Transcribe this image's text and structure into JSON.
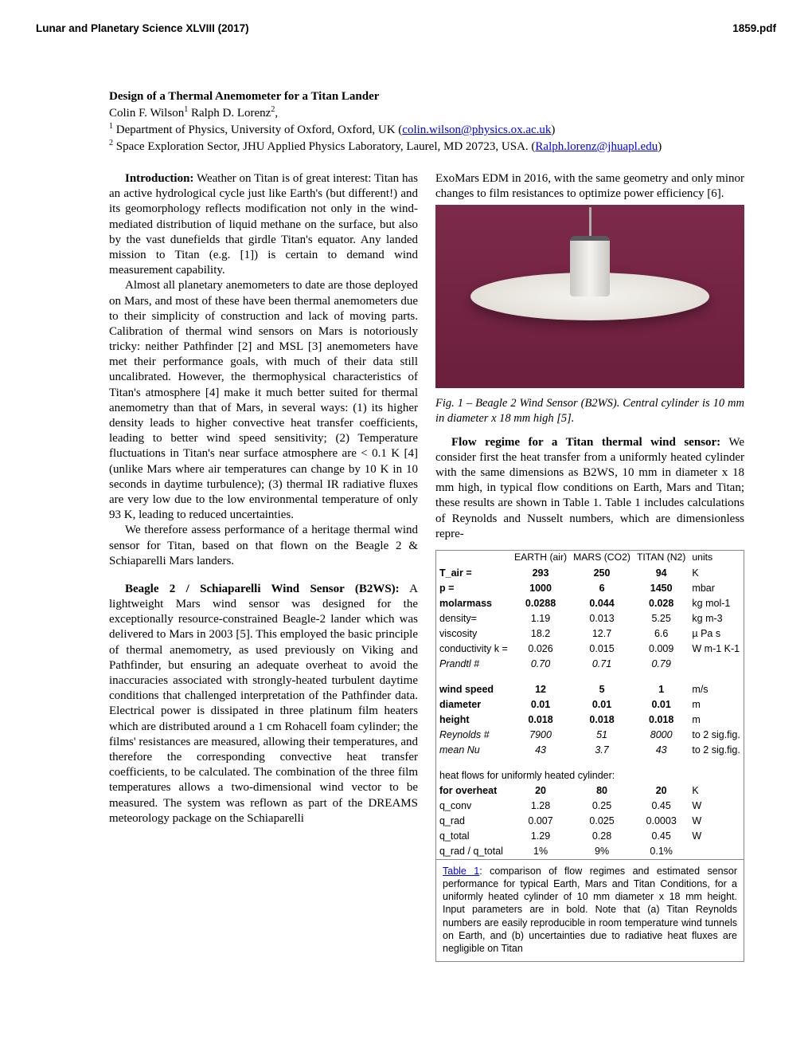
{
  "header": {
    "left": "Lunar and Planetary Science XLVIII (2017)",
    "right": "1859.pdf"
  },
  "title_block": {
    "title": "Design of a Thermal Anemometer for a Titan Lander",
    "authors_prefix": "Colin F. Wilson",
    "sup1": "1",
    "authors_mid": " Ralph D. Lorenz",
    "sup2": "2",
    "authors_end": ",",
    "affil1_pre": " Department of Physics, University of Oxford, Oxford, UK (",
    "affil1_link": "colin.wilson@physics.ox.ac.uk",
    "affil1_post": ")",
    "affil2_pre": " Space Exploration Sector, JHU Applied Physics Laboratory, Laurel, MD 20723, USA. (",
    "affil2_link": "Ralph.lorenz@jhuapl.edu",
    "affil2_post": ")"
  },
  "col1": {
    "intro_head": "Introduction:",
    "intro_body": "  Weather on Titan is of great interest: Titan has an active hydrological cycle just like Earth's (but different!) and its geomorphology reflects modification not only in the wind-mediated distribution of liquid methane on the surface, but also by the vast dunefields that girdle Titan's equator. Any landed mission to Titan (e.g. [1]) is certain to demand wind measurement capability.",
    "p2": "Almost all planetary anemometers to date are those deployed on Mars, and most of these have been thermal anemometers due to their simplicity of construction and lack of moving parts. Calibration of thermal wind sensors on Mars is notoriously tricky: neither Pathfinder [2] and MSL [3] anemometers have met their performance goals, with much of their data still uncalibrated. However, the thermophysical characteristics of Titan's atmosphere [4] make it much better suited for thermal anemometry than that of Mars, in several ways: (1) its higher density leads to higher convective heat transfer coefficients, leading to better wind speed sensitivity; (2) Temperature fluctuations in Titan's near surface atmosphere are < 0.1 K [4] (unlike Mars where air temperatures can change by 10 K in 10 seconds in daytime turbulence);  (3) thermal IR radiative fluxes are very low due to the low environmental temperature of only 93 K, leading to reduced uncertainties.",
    "p3": "We therefore assess performance of a heritage thermal wind sensor for Titan, based on that flown on the Beagle 2 & Schiaparelli Mars landers.",
    "b2ws_head": "Beagle 2 / Schiaparelli Wind Sensor (B2WS):",
    "b2ws_body": " A lightweight Mars wind sensor was designed for the exceptionally resource-constrained Beagle-2 lander which was delivered to Mars in 2003 [5]. This employed the basic principle of thermal anemometry, as used previously on Viking and Pathfinder, but ensuring an adequate overheat to avoid the inaccuracies associated with strongly-heated turbulent daytime conditions that challenged interpretation of the Pathfinder data. Electrical power is dissipated in three platinum film heaters which are distributed around a 1 cm Rohacell foam cylinder; the films' resistances are measured, allowing their temperatures, and therefore the corresponding convective heat transfer coefficients, to be calculated. The combination of the three film temperatures allows a two-dimensional wind vector to be measured. The system was reflown as part of the DREAMS meteorology package on the Schiaparelli"
  },
  "col2": {
    "top": "ExoMars EDM in 2016, with the same geometry and only minor changes to film resistances to optimize power efficiency [6].",
    "fig_caption": "Fig. 1 – Beagle 2 Wind Sensor (B2WS). Central cylinder is 10 mm in diameter x 18 mm high [5].",
    "flow_head": "Flow regime for a Titan thermal wind sensor:",
    "flow_body": " We consider first the heat transfer from a uniformly heated cylinder with the same dimensions as B2WS, 10 mm in diameter x 18 mm high, in typical flow conditions on Earth, Mars and Titan; these results are shown in Table 1. Table 1 includes calculations of Reynolds and Nusselt numbers, which are dimensionless repre-"
  },
  "table": {
    "headers": {
      "c1": "EARTH (air)",
      "c2": "MARS (CO2)",
      "c3": "TITAN (N2)",
      "c4": "units"
    },
    "rows_a": [
      {
        "label": "T_air =",
        "v": [
          "293",
          "250",
          "94"
        ],
        "u": "K",
        "bold": true
      },
      {
        "label": "p =",
        "v": [
          "1000",
          "6",
          "1450"
        ],
        "u": "mbar",
        "bold": true
      },
      {
        "label": "molarmass",
        "v": [
          "0.0288",
          "0.044",
          "0.028"
        ],
        "u": "kg mol-1",
        "bold": true
      },
      {
        "label": "density=",
        "v": [
          "1.19",
          "0.013",
          "5.25"
        ],
        "u": "kg m-3",
        "bold": false
      },
      {
        "label": "viscosity",
        "v": [
          "18.2",
          "12.7",
          "6.6"
        ],
        "u": "µ Pa s",
        "bold": false
      },
      {
        "label": "conductivity k =",
        "v": [
          "0.026",
          "0.015",
          "0.009"
        ],
        "u": "W m-1 K-1",
        "bold": false
      },
      {
        "label": "Prandtl #",
        "v": [
          "0.70",
          "0.71",
          "0.79"
        ],
        "u": "",
        "bold": false,
        "ital": true
      }
    ],
    "rows_b": [
      {
        "label": "wind speed",
        "v": [
          "12",
          "5",
          "1"
        ],
        "u": "m/s",
        "bold": true
      },
      {
        "label": "diameter",
        "v": [
          "0.01",
          "0.01",
          "0.01"
        ],
        "u": "m",
        "bold": true
      },
      {
        "label": "height",
        "v": [
          "0.018",
          "0.018",
          "0.018"
        ],
        "u": "m",
        "bold": true
      },
      {
        "label": "Reynolds #",
        "v": [
          "7900",
          "51",
          "8000"
        ],
        "u": "to 2 sig.fig.",
        "bold": false,
        "ital": true
      },
      {
        "label": "mean Nu",
        "v": [
          "43",
          "3.7",
          "43"
        ],
        "u": "to 2 sig.fig.",
        "bold": false,
        "ital": true
      }
    ],
    "section_label": "heat flows for uniformly heated cylinder:",
    "rows_c": [
      {
        "label": "for overheat",
        "v": [
          "20",
          "80",
          "20"
        ],
        "u": "K",
        "bold": true
      },
      {
        "label": "q_conv",
        "v": [
          "1.28",
          "0.25",
          "0.45"
        ],
        "u": "W",
        "bold": false
      },
      {
        "label": "q_rad",
        "v": [
          "0.007",
          "0.025",
          "0.0003"
        ],
        "u": "W",
        "bold": false
      },
      {
        "label": "q_total",
        "v": [
          "1.29",
          "0.28",
          "0.45"
        ],
        "u": "W",
        "bold": false
      },
      {
        "label": "q_rad / q_total",
        "v": [
          "1%",
          "9%",
          "0.1%"
        ],
        "u": "",
        "bold": false
      }
    ],
    "caption_label": "Table 1",
    "caption_body": ": comparison of flow regimes and estimated sensor performance for typical Earth, Mars and Titan Conditions, for a uniformly heated cylinder of 10 mm diameter x 18 mm height. Input parameters are in bold. Note that (a) Titan Reynolds numbers are easily reproducible in room temperature wind tunnels on Earth, and (b) uncertainties due to radiative heat fluxes are negligible on Titan"
  }
}
